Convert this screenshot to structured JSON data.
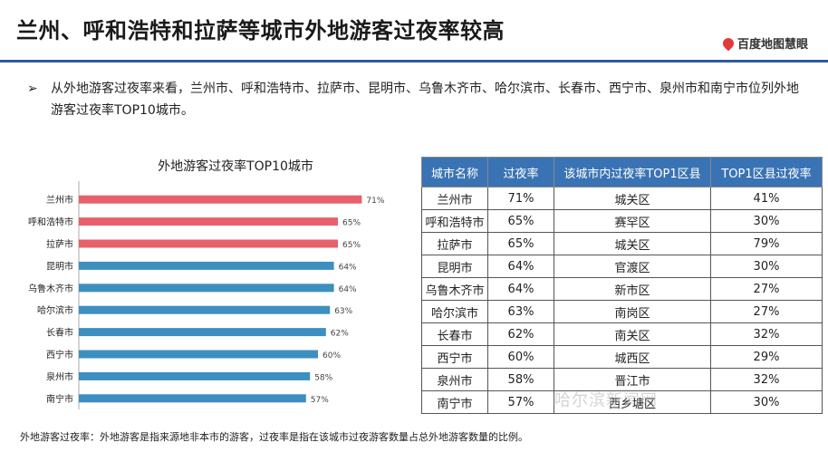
{
  "header": {
    "title": "兰州、呼和浩特和拉萨等城市外地游客过夜率较高",
    "logo_text": "百度地图慧眼"
  },
  "bullet": {
    "arrow": "➢",
    "text": "从外地游客过夜率来看，兰州市、呼和浩特市、拉萨市、昆明市、乌鲁木齐市、哈尔滨市、长春市、西宁市、泉州市和南宁市位列外地游客过夜率TOP10城市。"
  },
  "chart_data": {
    "type": "bar",
    "orientation": "horizontal",
    "title": "外地游客过夜率TOP10城市",
    "categories": [
      "兰州市",
      "呼和浩特市",
      "拉萨市",
      "昆明市",
      "乌鲁木齐市",
      "哈尔滨市",
      "长春市",
      "西宁市",
      "泉州市",
      "南宁市"
    ],
    "values": [
      71,
      65,
      65,
      64,
      64,
      63,
      62,
      60,
      58,
      57
    ],
    "value_labels": [
      "71%",
      "65%",
      "65%",
      "64%",
      "64%",
      "63%",
      "62%",
      "60%",
      "58%",
      "57%"
    ],
    "unit": "%",
    "xlim": [
      0,
      75
    ],
    "colors": [
      "#e8606a",
      "#e8606a",
      "#e8606a",
      "#3d8fc0",
      "#3d8fc0",
      "#3d8fc0",
      "#3d8fc0",
      "#3d8fc0",
      "#3d8fc0",
      "#3d8fc0"
    ],
    "grid": false
  },
  "table": {
    "headers": [
      "城市名称",
      "过夜率",
      "该城市内过夜率TOP1区县",
      "TOP1区县过夜率"
    ],
    "rows": [
      [
        "兰州市",
        "71%",
        "城关区",
        "41%"
      ],
      [
        "呼和浩特市",
        "65%",
        "赛罕区",
        "30%"
      ],
      [
        "拉萨市",
        "65%",
        "城关区",
        "79%"
      ],
      [
        "昆明市",
        "64%",
        "官渡区",
        "30%"
      ],
      [
        "乌鲁木齐市",
        "64%",
        "新市区",
        "27%"
      ],
      [
        "哈尔滨市",
        "63%",
        "南岗区",
        "27%"
      ],
      [
        "长春市",
        "62%",
        "南关区",
        "32%"
      ],
      [
        "西宁市",
        "60%",
        "城西区",
        "29%"
      ],
      [
        "泉州市",
        "58%",
        "晋江市",
        "32%"
      ],
      [
        "南宁市",
        "57%",
        "西乡塘区",
        "30%"
      ]
    ]
  },
  "footnote": "外地游客过夜率：外地游客是指来源地非本市的游客，过夜率是指在该城市过夜游客数量占总外地游客数量的比例。",
  "watermark": "哈尔滨新闻网"
}
